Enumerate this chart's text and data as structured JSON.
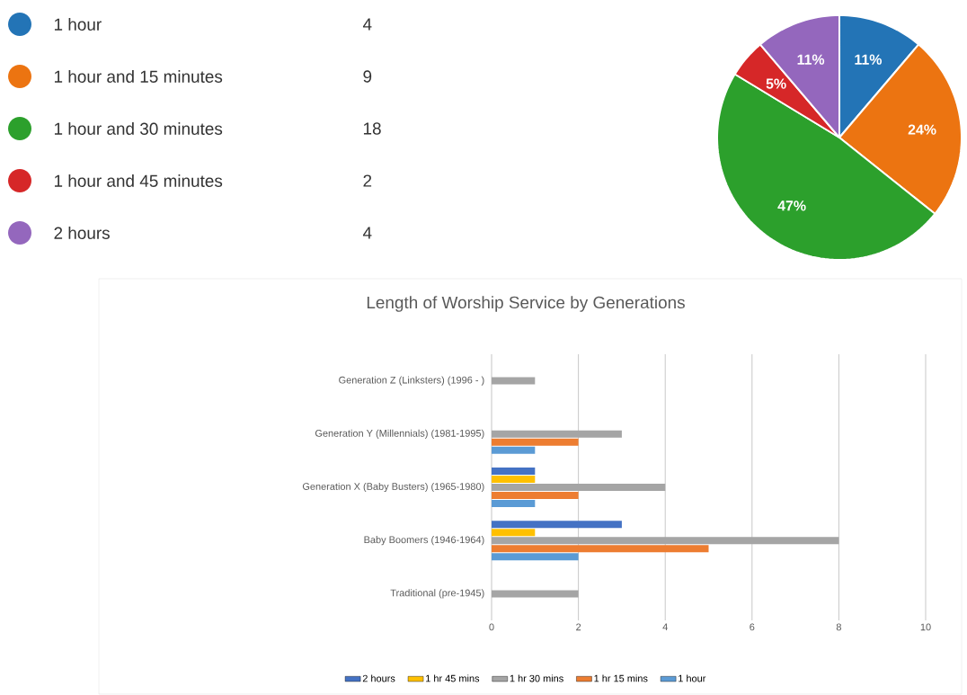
{
  "chart_data": [
    {
      "type": "pie",
      "categories": [
        "1 hour",
        "1 hour and 15 minutes",
        "1 hour and 30 minutes",
        "1 hour and 45 minutes",
        "2 hours"
      ],
      "values": [
        11,
        24,
        47,
        5,
        11
      ],
      "colors": [
        "#2374b6",
        "#ec7411",
        "#2ca02c",
        "#d62728",
        "#9467bd"
      ],
      "value_labels": [
        "11%",
        "24%",
        "47%",
        "5%",
        "11%"
      ],
      "annotations": [
        "4",
        "9",
        "18",
        "2",
        "4"
      ],
      "legend": "left"
    },
    {
      "type": "bar",
      "orientation": "horizontal",
      "title": "Length of Worship Service by Generations",
      "categories": [
        "Generation Z (Linksters) (1996 - )",
        "Generation Y (Millennials) (1981-1995)",
        "Generation X (Baby Busters) (1965-1980)",
        "Baby Boomers (1946-1964)",
        "Traditional (pre-1945)"
      ],
      "series": [
        {
          "name": "2 hours",
          "color": "#4472c4",
          "values": [
            0,
            0,
            1,
            3,
            0
          ]
        },
        {
          "name": "1 hr 45 mins",
          "color": "#ffc000",
          "values": [
            0,
            0,
            1,
            1,
            0
          ]
        },
        {
          "name": "1 hr 30 mins",
          "color": "#a5a5a5",
          "values": [
            1,
            3,
            4,
            8,
            2
          ]
        },
        {
          "name": "1 hr 15 mins",
          "color": "#ed7d31",
          "values": [
            0,
            2,
            2,
            5,
            0
          ]
        },
        {
          "name": "1 hour",
          "color": "#5b9bd5",
          "values": [
            0,
            1,
            1,
            2,
            0
          ]
        }
      ],
      "xlim": [
        0,
        10
      ],
      "xticks": [
        0,
        2,
        4,
        6,
        8,
        10
      ],
      "grid": "x",
      "legend": "bottom"
    }
  ]
}
